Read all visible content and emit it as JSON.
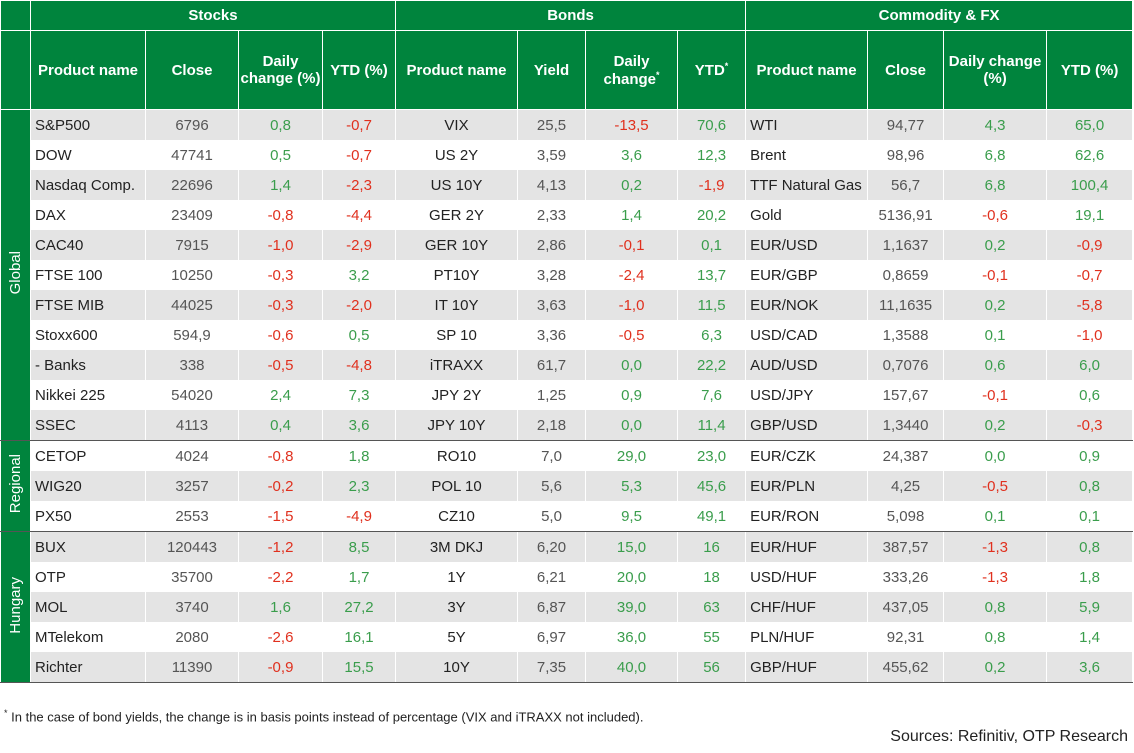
{
  "groups_header": [
    "Stocks",
    "Bonds",
    "Commodity & FX"
  ],
  "column_headers": [
    {
      "label": "Product name"
    },
    {
      "label": "Close"
    },
    {
      "label": "Daily change (%)"
    },
    {
      "label": "YTD (%)"
    },
    {
      "label": "Product name"
    },
    {
      "label": "Yield"
    },
    {
      "label": "Daily change",
      "mark": "*"
    },
    {
      "label": "YTD",
      "mark": "*"
    },
    {
      "label": "Product name"
    },
    {
      "label": "Close"
    },
    {
      "label": "Daily change (%)"
    },
    {
      "label": "YTD (%)"
    }
  ],
  "row_groups": [
    {
      "name": "Global",
      "rows": [
        [
          "S&P500",
          "6796",
          "0,8",
          "-0,7",
          "VIX",
          "25,5",
          "-13,5",
          "70,6",
          "WTI",
          "94,77",
          "4,3",
          "65,0"
        ],
        [
          "DOW",
          "47741",
          "0,5",
          "-0,7",
          "US 2Y",
          "3,59",
          "3,6",
          "12,3",
          "Brent",
          "98,96",
          "6,8",
          "62,6"
        ],
        [
          "Nasdaq Comp.",
          "22696",
          "1,4",
          "-2,3",
          "US 10Y",
          "4,13",
          "0,2",
          "-1,9",
          "TTF Natural Gas",
          "56,7",
          "6,8",
          "100,4"
        ],
        [
          "DAX",
          "23409",
          "-0,8",
          "-4,4",
          "GER 2Y",
          "2,33",
          "1,4",
          "20,2",
          "Gold",
          "5136,91",
          "-0,6",
          "19,1"
        ],
        [
          "CAC40",
          "7915",
          "-1,0",
          "-2,9",
          "GER 10Y",
          "2,86",
          "-0,1",
          "0,1",
          "EUR/USD",
          "1,1637",
          "0,2",
          "-0,9"
        ],
        [
          "FTSE 100",
          "10250",
          "-0,3",
          "3,2",
          "PT10Y",
          "3,28",
          "-2,4",
          "13,7",
          "EUR/GBP",
          "0,8659",
          "-0,1",
          "-0,7"
        ],
        [
          "FTSE MIB",
          "44025",
          "-0,3",
          "-2,0",
          "IT 10Y",
          "3,63",
          "-1,0",
          "11,5",
          "EUR/NOK",
          "11,1635",
          "0,2",
          "-5,8"
        ],
        [
          "Stoxx600",
          "594,9",
          "-0,6",
          "0,5",
          "SP 10",
          "3,36",
          "-0,5",
          "6,3",
          "USD/CAD",
          "1,3588",
          "0,1",
          "-1,0"
        ],
        [
          "- Banks",
          "338",
          "-0,5",
          "-4,8",
          "iTRAXX",
          "61,7",
          "0,0",
          "22,2",
          "AUD/USD",
          "0,7076",
          "0,6",
          "6,0"
        ],
        [
          "Nikkei 225",
          "54020",
          "2,4",
          "7,3",
          "JPY 2Y",
          "1,25",
          "0,9",
          "7,6",
          "USD/JPY",
          "157,67",
          "-0,1",
          "0,6"
        ],
        [
          "SSEC",
          "4113",
          "0,4",
          "3,6",
          "JPY 10Y",
          "2,18",
          "0,0",
          "11,4",
          "GBP/USD",
          "1,3440",
          "0,2",
          "-0,3"
        ]
      ]
    },
    {
      "name": "Regional",
      "rows": [
        [
          "CETOP",
          "4024",
          "-0,8",
          "1,8",
          "RO10",
          "7,0",
          "29,0",
          "23,0",
          "EUR/CZK",
          "24,387",
          "0,0",
          "0,9"
        ],
        [
          "WIG20",
          "3257",
          "-0,2",
          "2,3",
          "POL 10",
          "5,6",
          "5,3",
          "45,6",
          "EUR/PLN",
          "4,25",
          "-0,5",
          "0,8"
        ],
        [
          "PX50",
          "2553",
          "-1,5",
          "-4,9",
          "CZ10",
          "5,0",
          "9,5",
          "49,1",
          "EUR/RON",
          "5,098",
          "0,1",
          "0,1"
        ]
      ]
    },
    {
      "name": "Hungary",
      "rows": [
        [
          "BUX",
          "120443",
          "-1,2",
          "8,5",
          "3M DKJ",
          "6,20",
          "15,0",
          "16",
          "EUR/HUF",
          "387,57",
          "-1,3",
          "0,8"
        ],
        [
          "OTP",
          "35700",
          "-2,2",
          "1,7",
          "1Y",
          "6,21",
          "20,0",
          "18",
          "USD/HUF",
          "333,26",
          "-1,3",
          "1,8"
        ],
        [
          "MOL",
          "3740",
          "1,6",
          "27,2",
          "3Y",
          "6,87",
          "39,0",
          "63",
          "CHF/HUF",
          "437,05",
          "0,8",
          "5,9"
        ],
        [
          "MTelekom",
          "2080",
          "-2,6",
          "16,1",
          "5Y",
          "6,97",
          "36,0",
          "55",
          "PLN/HUF",
          "92,31",
          "0,8",
          "1,4"
        ],
        [
          "Richter",
          "11390",
          "-0,9",
          "15,5",
          "10Y",
          "7,35",
          "40,0",
          "56",
          "GBP/HUF",
          "455,62",
          "0,2",
          "3,6"
        ]
      ]
    }
  ],
  "footnote": {
    "mark": "*",
    "text": "In the case of bond yields, the change is in basis points instead of percentage (VIX and iTRAXX not included)."
  },
  "source": "Sources: Refinitiv, OTP Research"
}
